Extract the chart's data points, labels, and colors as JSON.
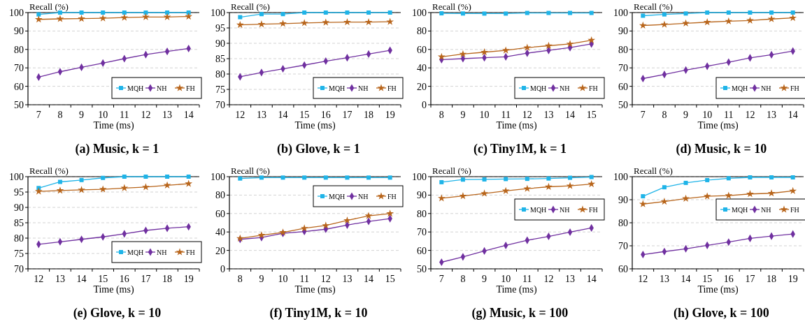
{
  "chart_data": [
    {
      "type": "line",
      "title": "(a) Music, k = 1",
      "xlabel": "Time (ms)",
      "ylabel": "Recall (%)",
      "categories": [
        "7",
        "8",
        "9",
        "10",
        "11",
        "12",
        "13",
        "14"
      ],
      "ylim": [
        50,
        100
      ],
      "yticks": [
        50,
        60,
        70,
        80,
        90,
        100
      ],
      "grid": "y",
      "legend": "bottom right",
      "series": [
        {
          "name": "MQH",
          "color": "#1fb4e8",
          "marker": "square",
          "values": [
            99,
            100,
            100,
            100,
            100,
            100,
            100,
            100
          ]
        },
        {
          "name": "NH",
          "color": "#7030a0",
          "marker": "diamond",
          "values": [
            65,
            67.9,
            70.3,
            72.6,
            75,
            77.2,
            78.9,
            80.5
          ]
        },
        {
          "name": "FH",
          "color": "#b8651b",
          "marker": "star",
          "values": [
            96.3,
            96.6,
            96.7,
            96.9,
            97.3,
            97.6,
            97.6,
            97.9
          ]
        }
      ]
    },
    {
      "type": "line",
      "title": "(b) Glove, k = 1",
      "xlabel": "Time (ms)",
      "ylabel": "Recall (%)",
      "categories": [
        "12",
        "13",
        "14",
        "15",
        "16",
        "17",
        "18",
        "19"
      ],
      "ylim": [
        70,
        100
      ],
      "yticks": [
        70,
        75,
        80,
        85,
        90,
        95,
        100
      ],
      "grid": "y",
      "legend": "bottom right",
      "series": [
        {
          "name": "MQH",
          "color": "#1fb4e8",
          "marker": "square",
          "values": [
            98.5,
            99.5,
            99.5,
            100,
            100,
            100,
            100,
            100
          ]
        },
        {
          "name": "NH",
          "color": "#7030a0",
          "marker": "diamond",
          "values": [
            79.1,
            80.5,
            81.7,
            82.9,
            84.2,
            85.3,
            86.5,
            87.7
          ]
        },
        {
          "name": "FH",
          "color": "#b8651b",
          "marker": "star",
          "values": [
            96,
            96.2,
            96.4,
            96.6,
            96.8,
            96.9,
            96.9,
            97
          ]
        }
      ]
    },
    {
      "type": "line",
      "title": "(c) Tiny1M, k = 1",
      "xlabel": "Time (ms)",
      "ylabel": "Recall (%)",
      "categories": [
        "8",
        "9",
        "10",
        "11",
        "12",
        "13",
        "14",
        "15"
      ],
      "ylim": [
        0,
        100
      ],
      "yticks": [
        0,
        20,
        40,
        60,
        80,
        100
      ],
      "grid": "y",
      "legend": "bottom right",
      "series": [
        {
          "name": "MQH",
          "color": "#1fb4e8",
          "marker": "square",
          "values": [
            99.2,
            99,
            98.9,
            98.9,
            99.6,
            99.6,
            99.6,
            99.6
          ]
        },
        {
          "name": "NH",
          "color": "#7030a0",
          "marker": "diamond",
          "values": [
            49,
            50,
            51,
            52,
            56,
            59,
            62,
            66
          ]
        },
        {
          "name": "FH",
          "color": "#b8651b",
          "marker": "star",
          "values": [
            52,
            55,
            57,
            59,
            62,
            64,
            66,
            70
          ]
        }
      ]
    },
    {
      "type": "line",
      "title": "(d) Music, k = 10",
      "xlabel": "Time (ms)",
      "ylabel": "Recall (%)",
      "categories": [
        "7",
        "8",
        "9",
        "10",
        "11",
        "12",
        "13",
        "14"
      ],
      "ylim": [
        50,
        100
      ],
      "yticks": [
        50,
        60,
        70,
        80,
        90,
        100
      ],
      "grid": "y",
      "legend": "bottom right",
      "series": [
        {
          "name": "MQH",
          "color": "#1fb4e8",
          "marker": "square",
          "values": [
            98.3,
            99,
            99.5,
            100,
            100,
            100,
            100,
            100
          ]
        },
        {
          "name": "NH",
          "color": "#7030a0",
          "marker": "diamond",
          "values": [
            64.2,
            66.4,
            68.8,
            70.9,
            73.1,
            75.4,
            77.1,
            79.1
          ]
        },
        {
          "name": "FH",
          "color": "#b8651b",
          "marker": "star",
          "values": [
            93,
            93.5,
            94.2,
            94.8,
            95.3,
            95.7,
            96.5,
            97.1
          ]
        }
      ]
    },
    {
      "type": "line",
      "title": "(e) Glove, k = 10",
      "xlabel": "Time (ms)",
      "ylabel": "Recall (%)",
      "categories": [
        "12",
        "13",
        "14",
        "15",
        "16",
        "17",
        "18",
        "19"
      ],
      "ylim": [
        70,
        100
      ],
      "yticks": [
        70,
        75,
        80,
        85,
        90,
        95,
        100
      ],
      "grid": "y",
      "legend": "bottom right",
      "series": [
        {
          "name": "MQH",
          "color": "#1fb4e8",
          "marker": "square",
          "values": [
            96.3,
            98.3,
            98.9,
            99.6,
            100,
            100,
            100,
            100
          ]
        },
        {
          "name": "NH",
          "color": "#7030a0",
          "marker": "diamond",
          "values": [
            78,
            78.8,
            79.6,
            80.4,
            81.4,
            82.5,
            83.2,
            83.7
          ]
        },
        {
          "name": "FH",
          "color": "#b8651b",
          "marker": "star",
          "values": [
            95.2,
            95.5,
            95.7,
            95.9,
            96.3,
            96.6,
            97.2,
            97.7
          ]
        }
      ]
    },
    {
      "type": "line",
      "title": "(f) Tiny1M, k = 10",
      "xlabel": "Time (ms)",
      "ylabel": "Recall (%)",
      "categories": [
        "8",
        "9",
        "10",
        "11",
        "12",
        "13",
        "14",
        "15"
      ],
      "ylim": [
        0,
        100
      ],
      "yticks": [
        0,
        20,
        40,
        60,
        80,
        100
      ],
      "grid": "y",
      "legend": "top right",
      "series": [
        {
          "name": "MQH",
          "color": "#1fb4e8",
          "marker": "square",
          "values": [
            98,
            99,
            99,
            99,
            99,
            99,
            99,
            99
          ]
        },
        {
          "name": "NH",
          "color": "#7030a0",
          "marker": "diamond",
          "values": [
            32,
            34,
            38.5,
            40.5,
            43,
            47.5,
            51.5,
            54.5
          ]
        },
        {
          "name": "FH",
          "color": "#b8651b",
          "marker": "star",
          "values": [
            33,
            36.5,
            39.5,
            44,
            47,
            52.5,
            57.5,
            60
          ]
        }
      ]
    },
    {
      "type": "line",
      "title": "(g) Music, k = 100",
      "xlabel": "Time (ms)",
      "ylabel": "Recall (%)",
      "categories": [
        "7",
        "8",
        "9",
        "10",
        "11",
        "12",
        "13",
        "14"
      ],
      "ylim": [
        50,
        100
      ],
      "yticks": [
        50,
        60,
        70,
        80,
        90,
        100
      ],
      "grid": "y",
      "legend": "right",
      "series": [
        {
          "name": "MQH",
          "color": "#1fb4e8",
          "marker": "square",
          "values": [
            97,
            98.4,
            98.5,
            98.7,
            98.8,
            99,
            99.4,
            99.8
          ]
        },
        {
          "name": "NH",
          "color": "#7030a0",
          "marker": "diamond",
          "values": [
            53.6,
            56.5,
            59.7,
            62.7,
            65.5,
            67.6,
            69.9,
            72.2
          ]
        },
        {
          "name": "FH",
          "color": "#b8651b",
          "marker": "star",
          "values": [
            88.3,
            89.5,
            90.9,
            92.3,
            93.5,
            94.5,
            95,
            96
          ]
        }
      ]
    },
    {
      "type": "line",
      "title": "(h) Glove, k = 100",
      "xlabel": "Time (ms)",
      "ylabel": "Recall (%)",
      "categories": [
        "12",
        "13",
        "14",
        "15",
        "16",
        "17",
        "18",
        "19"
      ],
      "ylim": [
        60,
        100
      ],
      "yticks": [
        60,
        70,
        80,
        90,
        100
      ],
      "grid": "y",
      "legend": "right",
      "series": [
        {
          "name": "MQH",
          "color": "#1fb4e8",
          "marker": "square",
          "values": [
            91.5,
            95.4,
            97.3,
            98.5,
            99.3,
            99.7,
            99.7,
            99.7
          ]
        },
        {
          "name": "NH",
          "color": "#7030a0",
          "marker": "diamond",
          "values": [
            66.2,
            67.5,
            68.7,
            70.2,
            71.6,
            73.2,
            74.2,
            75.1
          ]
        },
        {
          "name": "FH",
          "color": "#b8651b",
          "marker": "star",
          "values": [
            88.1,
            89.2,
            90.5,
            91.5,
            91.8,
            92.5,
            92.8,
            93.8
          ]
        }
      ]
    }
  ]
}
